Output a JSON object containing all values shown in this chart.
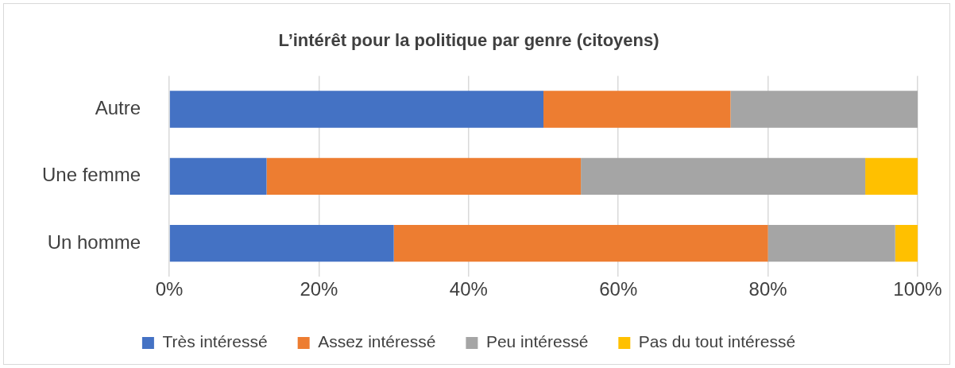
{
  "chart_data": {
    "type": "bar",
    "orientation": "horizontal",
    "stacked": true,
    "title": "L’intérêt pour la politique par genre (citoyens)",
    "categories": [
      "Autre",
      "Une femme",
      "Un homme"
    ],
    "series": [
      {
        "name": "Très intéressé",
        "color": "#4472c4",
        "values": [
          50,
          13,
          30
        ]
      },
      {
        "name": "Assez intéressé",
        "color": "#ed7d31",
        "values": [
          25,
          42,
          50
        ]
      },
      {
        "name": "Peu intéressé",
        "color": "#a5a5a5",
        "values": [
          25,
          38,
          17
        ]
      },
      {
        "name": "Pas du tout intéressé",
        "color": "#ffc000",
        "values": [
          0,
          7,
          3
        ]
      }
    ],
    "xlim": [
      0,
      100
    ],
    "xticks": [
      {
        "value": 0,
        "label": "0%"
      },
      {
        "value": 20,
        "label": "20%"
      },
      {
        "value": 40,
        "label": "40%"
      },
      {
        "value": 60,
        "label": "60%"
      },
      {
        "value": 80,
        "label": "80%"
      },
      {
        "value": 100,
        "label": "100%"
      }
    ],
    "grid": "x",
    "legend": "bottom"
  }
}
